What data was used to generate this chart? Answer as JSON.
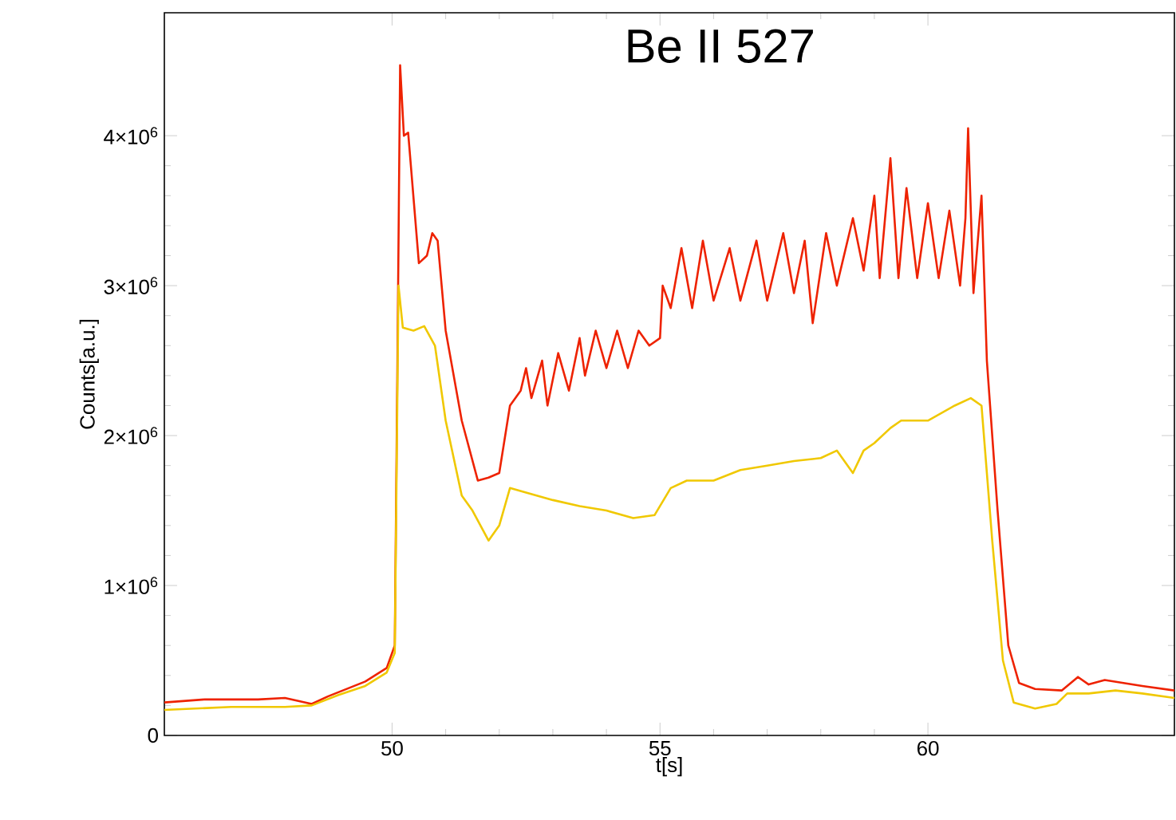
{
  "chart_data": {
    "type": "line",
    "title": "Be II 527",
    "xlabel": "t[s]",
    "ylabel": "Counts[a.u.]",
    "xlim": [
      45.75,
      64.6
    ],
    "ylim": [
      0,
      4820000
    ],
    "xticks": [
      50,
      55,
      60
    ],
    "yticks": [
      0,
      {
        "value": 1000000,
        "label": "1×10$^{6}$"
      },
      {
        "value": 2000000,
        "label": "2×10$^{6}$"
      },
      {
        "value": 3000000,
        "label": "3×10$^{6}$"
      },
      {
        "value": 4000000,
        "label": "4×10$^{6}$"
      }
    ],
    "grid": false,
    "series": [
      {
        "color": "#ee2200",
        "x": [
          45.75,
          46.5,
          47.5,
          48.0,
          48.5,
          48.8,
          49.5,
          49.9,
          50.05,
          50.1,
          50.15,
          50.22,
          50.3,
          50.5,
          50.65,
          50.75,
          50.85,
          51.0,
          51.3,
          51.6,
          51.8,
          52.0,
          52.2,
          52.4,
          52.5,
          52.6,
          52.8,
          52.9,
          53.1,
          53.3,
          53.5,
          53.6,
          53.8,
          54.0,
          54.2,
          54.4,
          54.6,
          54.8,
          55.0,
          55.05,
          55.2,
          55.4,
          55.6,
          55.8,
          56.0,
          56.3,
          56.5,
          56.8,
          57.0,
          57.3,
          57.5,
          57.7,
          57.85,
          58.1,
          58.3,
          58.6,
          58.8,
          59.0,
          59.1,
          59.3,
          59.45,
          59.6,
          59.8,
          60.0,
          60.2,
          60.4,
          60.6,
          60.7,
          60.75,
          60.85,
          61.0,
          61.05,
          61.1,
          61.3,
          61.5,
          61.7,
          62.0,
          62.5,
          62.8,
          63.0,
          63.3,
          64.0,
          64.6
        ],
        "values": [
          220000,
          240000,
          240000,
          250000,
          210000,
          260000,
          360000,
          450000,
          600000,
          2500000,
          4470000,
          4000000,
          4020000,
          3150000,
          3200000,
          3350000,
          3300000,
          2700000,
          2100000,
          1700000,
          1720000,
          1750000,
          2200000,
          2300000,
          2450000,
          2250000,
          2500000,
          2200000,
          2550000,
          2300000,
          2650000,
          2400000,
          2700000,
          2450000,
          2700000,
          2450000,
          2700000,
          2600000,
          2650000,
          3000000,
          2850000,
          3250000,
          2850000,
          3300000,
          2900000,
          3250000,
          2900000,
          3300000,
          2900000,
          3350000,
          2950000,
          3300000,
          2750000,
          3350000,
          3000000,
          3450000,
          3100000,
          3600000,
          3050000,
          3850000,
          3050000,
          3650000,
          3050000,
          3550000,
          3050000,
          3500000,
          3000000,
          3450000,
          4050000,
          2950000,
          3600000,
          3050000,
          2500000,
          1500000,
          600000,
          350000,
          310000,
          300000,
          390000,
          340000,
          370000,
          330000,
          300000
        ]
      },
      {
        "color": "#f0c800",
        "x": [
          45.75,
          47.0,
          48.0,
          48.5,
          49.0,
          49.5,
          49.9,
          50.05,
          50.12,
          50.2,
          50.4,
          50.6,
          50.8,
          51.0,
          51.3,
          51.5,
          51.8,
          52.0,
          52.2,
          52.5,
          53.0,
          53.5,
          54.0,
          54.5,
          54.9,
          55.2,
          55.5,
          56.0,
          56.5,
          57.0,
          57.5,
          58.0,
          58.3,
          58.6,
          58.8,
          59.0,
          59.3,
          59.5,
          60.0,
          60.5,
          60.8,
          61.0,
          61.2,
          61.4,
          61.6,
          62.0,
          62.4,
          62.6,
          63.0,
          63.5,
          64.0,
          64.6
        ],
        "values": [
          170000,
          190000,
          190000,
          200000,
          270000,
          330000,
          420000,
          550000,
          3000000,
          2720000,
          2700000,
          2730000,
          2600000,
          2100000,
          1600000,
          1500000,
          1300000,
          1400000,
          1650000,
          1620000,
          1570000,
          1530000,
          1500000,
          1450000,
          1470000,
          1650000,
          1700000,
          1700000,
          1770000,
          1800000,
          1830000,
          1850000,
          1900000,
          1750000,
          1900000,
          1950000,
          2050000,
          2100000,
          2100000,
          2200000,
          2250000,
          2200000,
          1300000,
          500000,
          220000,
          180000,
          210000,
          280000,
          280000,
          300000,
          280000,
          250000
        ]
      }
    ]
  }
}
